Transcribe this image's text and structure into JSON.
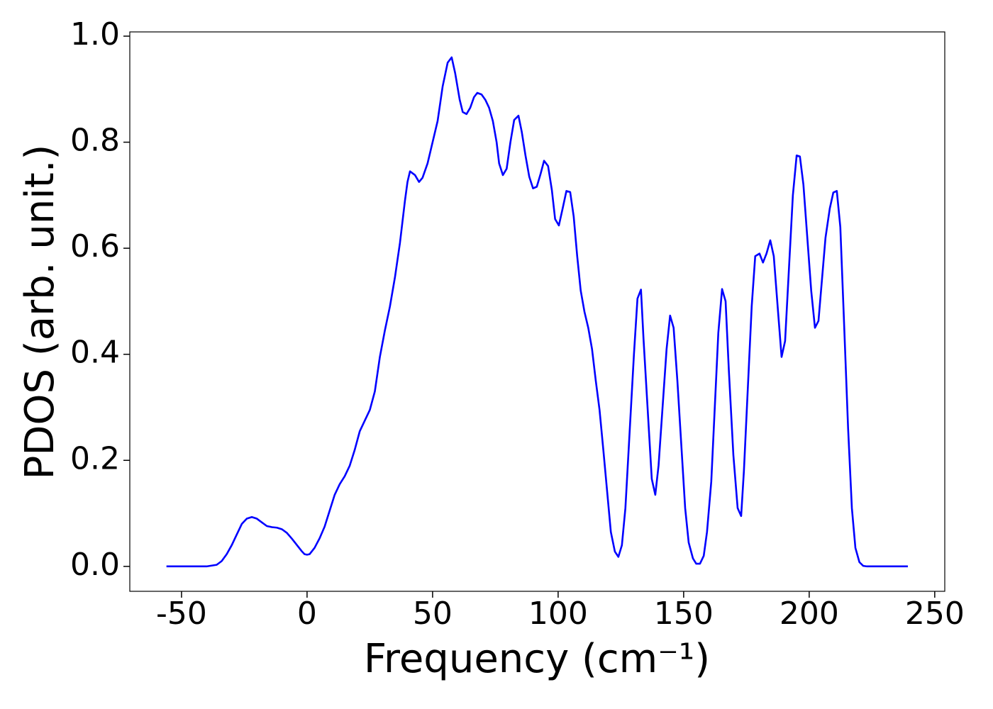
{
  "chart_data": {
    "type": "line",
    "xlabel": "Frequency (cm⁻¹)",
    "ylabel": "PDOS (arb. unit.)",
    "xlim": [
      -70.6,
      254
    ],
    "ylim": [
      -0.047,
      1.008
    ],
    "xticks": [
      -50,
      0,
      50,
      100,
      150,
      200,
      250
    ],
    "yticks": [
      {
        "value": 0,
        "label": "0.0"
      },
      {
        "value": 0.2,
        "label": "0.2"
      },
      {
        "value": 0.4,
        "label": "0.4"
      },
      {
        "value": 0.6,
        "label": "0.6"
      },
      {
        "value": 0.8,
        "label": "0.8"
      },
      {
        "value": 1.0,
        "label": "1.0"
      }
    ],
    "grid": false,
    "series": [
      {
        "color": "#0000ff",
        "x": [
          -56,
          -40,
          -36,
          -34,
          -32,
          -30,
          -28,
          -26,
          -24,
          -22,
          -20,
          -18,
          -16,
          -14,
          -12,
          -10,
          -8,
          -6,
          -4,
          -2,
          -1,
          0,
          1,
          3,
          5,
          7,
          9,
          11,
          13,
          15,
          17,
          19,
          21,
          23,
          25,
          27,
          29,
          31,
          33,
          35,
          37,
          39,
          40,
          41,
          43,
          44.6,
          46,
          48,
          50,
          52,
          54,
          56,
          57.6,
          59,
          60.8,
          62,
          63.5,
          65,
          66.5,
          67.8,
          69.5,
          71,
          72.5,
          74,
          75.5,
          76.5,
          78,
          79.5,
          81,
          82.5,
          84.2,
          85.5,
          87,
          88.5,
          90,
          91.5,
          93,
          94.4,
          96,
          97.5,
          98.8,
          100.3,
          101.8,
          103.3,
          104.8,
          106.2,
          107.6,
          109,
          110.5,
          112,
          113.5,
          115,
          116.5,
          118,
          121,
          122.6,
          124,
          125.4,
          126.8,
          130.2,
          131.6,
          133,
          134,
          137.3,
          138.7,
          140,
          143.2,
          144.6,
          146,
          147.5,
          150.6,
          152,
          153.7,
          155,
          156.5,
          158,
          159.3,
          161,
          163.8,
          165.3,
          166.7,
          168,
          169.8,
          171.5,
          172.9,
          174,
          177.1,
          178.5,
          180.2,
          181.6,
          183,
          184.5,
          185.9,
          187.6,
          189,
          190.4,
          193.5,
          195,
          196.3,
          197.7,
          200.8,
          202.3,
          203.7,
          206.5,
          208.2,
          209.6,
          211,
          212.4,
          213.8,
          215.5,
          217,
          218.4,
          220,
          221.5,
          223,
          239.3
        ],
        "values": [
          0,
          0,
          0.003,
          0.01,
          0.023,
          0.04,
          0.06,
          0.08,
          0.09,
          0.093,
          0.09,
          0.083,
          0.076,
          0.074,
          0.073,
          0.07,
          0.063,
          0.052,
          0.04,
          0.028,
          0.023,
          0.022,
          0.023,
          0.035,
          0.053,
          0.075,
          0.105,
          0.135,
          0.155,
          0.17,
          0.19,
          0.22,
          0.255,
          0.275,
          0.295,
          0.33,
          0.395,
          0.445,
          0.49,
          0.545,
          0.61,
          0.69,
          0.725,
          0.745,
          0.738,
          0.725,
          0.733,
          0.76,
          0.8,
          0.84,
          0.905,
          0.95,
          0.96,
          0.93,
          0.88,
          0.857,
          0.853,
          0.865,
          0.885,
          0.893,
          0.89,
          0.88,
          0.865,
          0.84,
          0.8,
          0.76,
          0.738,
          0.75,
          0.8,
          0.842,
          0.85,
          0.82,
          0.775,
          0.735,
          0.713,
          0.716,
          0.74,
          0.765,
          0.755,
          0.71,
          0.655,
          0.643,
          0.675,
          0.708,
          0.706,
          0.66,
          0.585,
          0.52,
          0.48,
          0.45,
          0.41,
          0.35,
          0.295,
          0.22,
          0.065,
          0.028,
          0.018,
          0.04,
          0.11,
          0.4,
          0.505,
          0.522,
          0.43,
          0.165,
          0.135,
          0.19,
          0.41,
          0.473,
          0.45,
          0.35,
          0.11,
          0.045,
          0.015,
          0.005,
          0.005,
          0.02,
          0.065,
          0.16,
          0.44,
          0.523,
          0.5,
          0.37,
          0.21,
          0.11,
          0.095,
          0.18,
          0.49,
          0.585,
          0.59,
          0.573,
          0.59,
          0.615,
          0.585,
          0.48,
          0.395,
          0.425,
          0.7,
          0.775,
          0.773,
          0.72,
          0.52,
          0.45,
          0.463,
          0.62,
          0.675,
          0.705,
          0.708,
          0.64,
          0.47,
          0.26,
          0.11,
          0.035,
          0.008,
          0.001,
          0,
          0
        ]
      }
    ]
  }
}
